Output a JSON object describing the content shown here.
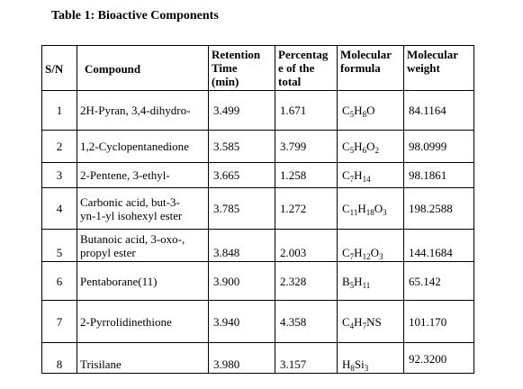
{
  "caption": "Table 1: Bioactive Components",
  "headers": {
    "sn": "S/N",
    "compound": "Compound",
    "retention": [
      "Retention",
      "Time",
      "(min)"
    ],
    "percentage": [
      "Percentag",
      "e of the",
      "total"
    ],
    "formula": [
      "Molecular",
      "formula"
    ],
    "weight": [
      "Molecular",
      "weight"
    ]
  },
  "rows": [
    {
      "sn": "1",
      "compound": [
        "2H-Pyran, 3,4-dihydro-"
      ],
      "retention": "3.499",
      "percentage": "1.671",
      "formula": [
        {
          "t": "C"
        },
        {
          "t": "5",
          "sub": true
        },
        {
          "t": "H"
        },
        {
          "t": "8",
          "sub": true
        },
        {
          "t": "O"
        }
      ],
      "weight": "84.1164"
    },
    {
      "sn": "2",
      "compound": [
        "1,2-Cyclopentanedione"
      ],
      "retention": "3.585",
      "percentage": "3.799",
      "formula": [
        {
          "t": "C"
        },
        {
          "t": "5",
          "sub": true
        },
        {
          "t": "H"
        },
        {
          "t": "6",
          "sub": true
        },
        {
          "t": "O"
        },
        {
          "t": "2",
          "sub": true
        }
      ],
      "weight": "98.0999"
    },
    {
      "sn": "3",
      "compound": [
        "2-Pentene, 3-ethyl-"
      ],
      "retention": "3.665",
      "percentage": "1.258",
      "formula": [
        {
          "t": "C"
        },
        {
          "t": "7",
          "sub": true
        },
        {
          "t": "H"
        },
        {
          "t": "14",
          "sub": true
        }
      ],
      "weight": "98.1861"
    },
    {
      "sn": "4",
      "compound": [
        "Carbonic acid, but-3-",
        "yn-1-yl isohexyl ester"
      ],
      "retention": "3.785",
      "percentage": "1.272",
      "formula": [
        {
          "t": "C"
        },
        {
          "t": "11",
          "sub": true
        },
        {
          "t": "H"
        },
        {
          "t": "18",
          "sub": true
        },
        {
          "t": "O"
        },
        {
          "t": "3",
          "sub": true
        }
      ],
      "weight": "198.2588"
    },
    {
      "sn": "5",
      "compound": [
        "Butanoic acid, 3-oxo-,",
        "propyl ester"
      ],
      "retention": "3.848",
      "percentage": "2.003",
      "formula": [
        {
          "t": "C"
        },
        {
          "t": "7",
          "sub": true
        },
        {
          "t": "H"
        },
        {
          "t": "12",
          "sub": true
        },
        {
          "t": "O"
        },
        {
          "t": "3",
          "sub": true
        }
      ],
      "weight": "144.1684"
    },
    {
      "sn": "6",
      "compound": [
        "Pentaborane(11)"
      ],
      "retention": "3.900",
      "percentage": "2.328",
      "formula": [
        {
          "t": "B"
        },
        {
          "t": "5",
          "sub": true
        },
        {
          "t": "H"
        },
        {
          "t": "11",
          "sub": true
        }
      ],
      "weight": "65.142"
    },
    {
      "sn": "7",
      "compound": [
        "2-Pyrrolidinethione"
      ],
      "retention": "3.940",
      "percentage": "4.358",
      "formula": [
        {
          "t": "C"
        },
        {
          "t": "4",
          "sub": true
        },
        {
          "t": "H"
        },
        {
          "t": "7",
          "sub": true
        },
        {
          "t": "NS"
        }
      ],
      "weight": "101.170"
    },
    {
      "sn": "8",
      "compound": [
        "Trisilane"
      ],
      "retention": "3.980",
      "percentage": "3.157",
      "formula": [
        {
          "t": "H"
        },
        {
          "t": "8",
          "sub": true
        },
        {
          "t": "Si"
        },
        {
          "t": "3",
          "sub": true
        }
      ],
      "weight": "92.3200"
    }
  ]
}
